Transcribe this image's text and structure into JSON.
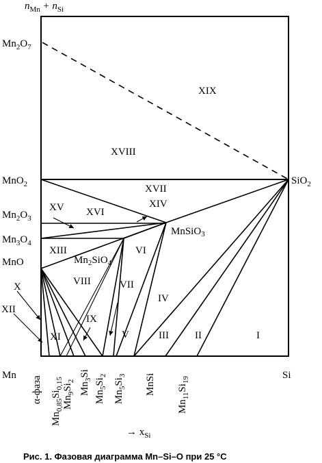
{
  "y_axis_label": {
    "main": "n",
    "sub1": "Mn",
    "plus": " + n",
    "sub2": "Si"
  },
  "x_axis_label": {
    "arrow": "→ x",
    "sub": "Si"
  },
  "left_labels": {
    "mn2o7": {
      "a": "Mn",
      "b": "2",
      "c": "O",
      "d": "7"
    },
    "mno2": {
      "a": "MnO",
      "b": "2"
    },
    "mn2o3": {
      "a": "Mn",
      "b": "2",
      "c": "O",
      "d": "3"
    },
    "mn3o4": {
      "a": "Mn",
      "b": "3",
      "c": "O",
      "d": "4"
    },
    "mno": "MnO",
    "mn": "Mn",
    "si": "Si"
  },
  "right_labels": {
    "sio2": {
      "a": "SiO",
      "b": "2"
    }
  },
  "compounds": {
    "mnsio3": {
      "a": "MnSiO",
      "b": "3"
    },
    "mn2sio4": {
      "a": "Mn",
      "b": "2",
      "c": "SiO",
      "d": "4"
    }
  },
  "bottom_phases": [
    "α-фаза",
    "Mn0,85Si0,15",
    "Mn9Si2",
    "Mn3Si",
    "Mn5Si2",
    "Mn5Si3",
    "MnSi",
    "Mn11Si19"
  ],
  "zones": {
    "I": "I",
    "II": "II",
    "III": "III",
    "IV": "IV",
    "V": "V",
    "VI": "VI",
    "VII": "VII",
    "VIII": "VIII",
    "IX": "IX",
    "X": "X",
    "XI": "XI",
    "XII": "XII",
    "XIII": "XIII",
    "XIV": "XIV",
    "XV": "XV",
    "XVI": "XVI",
    "XVII": "XVII",
    "XVIII": "XVIII",
    "XIX": "XIX"
  },
  "caption": "Рис. 1. Фазовая диаграмма Mn–Si–O при 25 °C"
}
